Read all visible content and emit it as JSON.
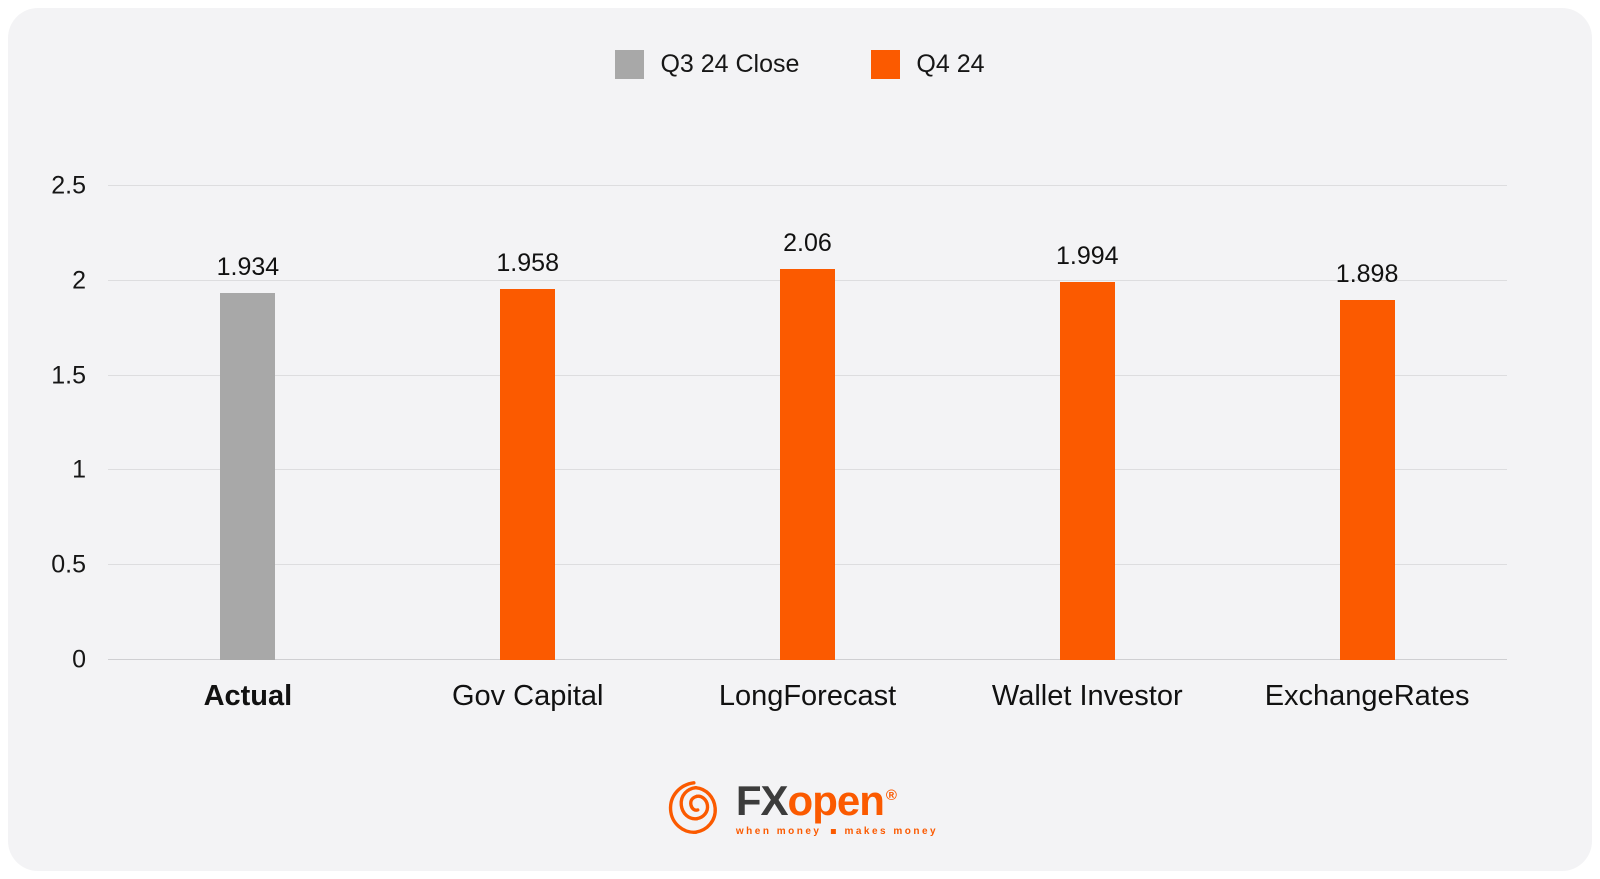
{
  "legend": {
    "items": [
      {
        "label": "Q3 24 Close",
        "color": "#a8a8a8"
      },
      {
        "label": "Q4 24",
        "color": "#fb5a00"
      }
    ]
  },
  "chart_data": {
    "type": "bar",
    "categories": [
      "Actual",
      "Gov Capital",
      "LongForecast",
      "Wallet Investor",
      "ExchangeRates"
    ],
    "values": [
      1.934,
      1.958,
      2.06,
      1.994,
      1.898
    ],
    "series_labels": [
      "Q3 24 Close",
      "Q4 24",
      "Q4 24",
      "Q4 24",
      "Q4 24"
    ],
    "bar_colors": [
      "#a8a8a8",
      "#fb5a00",
      "#fb5a00",
      "#fb5a00",
      "#fb5a00"
    ],
    "bold_categories": [
      "Actual"
    ],
    "yticks": [
      0,
      0.5,
      1,
      1.5,
      2,
      2.5
    ],
    "ylim": [
      0,
      2.5
    ],
    "grid": true,
    "legend_position": "top-center",
    "title": "",
    "xlabel": "",
    "ylabel": ""
  },
  "footer": {
    "brand_fx": "FX",
    "brand_open": "open",
    "registered": "®",
    "tagline_left": "when money",
    "tagline_right": "makes money"
  },
  "colors": {
    "accent_orange": "#fb5a00",
    "neutral_gray": "#a8a8a8",
    "card_background": "#f3f3f5"
  }
}
